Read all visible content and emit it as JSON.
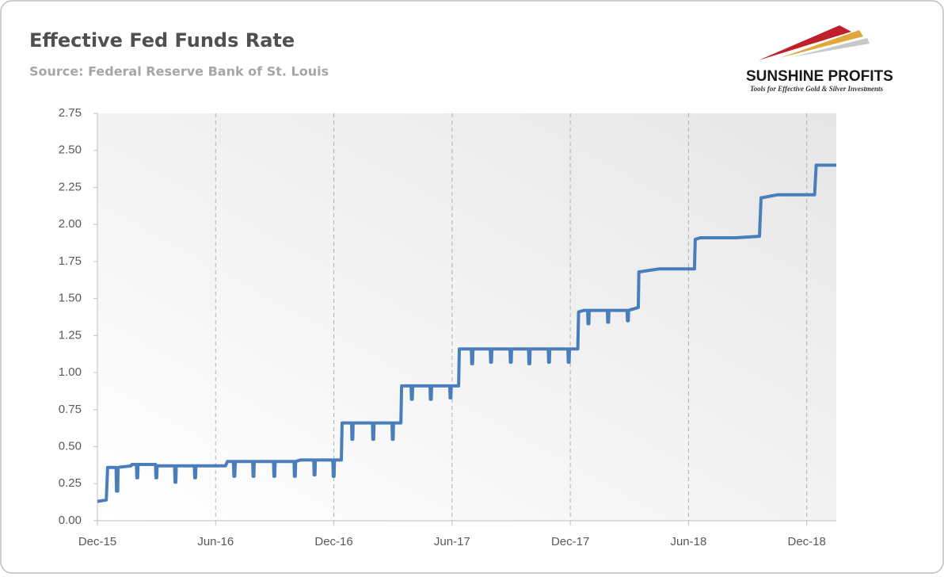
{
  "chart_data": {
    "type": "line",
    "title": "Effective Fed Funds Rate",
    "subtitle": "Source: Federal Reserve Bank of St. Louis",
    "brand": "SUNSHINE PROFITS",
    "tagline": "Tools for Effective Gold & Silver Investments",
    "color": "#4a7ebb",
    "grid": true,
    "xlim": [
      0,
      37.5
    ],
    "ylim": [
      0,
      2.75
    ],
    "xticks": [
      {
        "value": 0,
        "label": "Dec-15"
      },
      {
        "value": 6,
        "label": "Jun-16"
      },
      {
        "value": 12,
        "label": "Dec-16"
      },
      {
        "value": 18,
        "label": "Jun-17"
      },
      {
        "value": 24,
        "label": "Dec-17"
      },
      {
        "value": 30,
        "label": "Jun-18"
      },
      {
        "value": 36,
        "label": "Dec-18"
      }
    ],
    "yticks": [
      {
        "value": 0,
        "label": "0.00"
      },
      {
        "value": 0.25,
        "label": "0.25"
      },
      {
        "value": 0.5,
        "label": "0.50"
      },
      {
        "value": 0.75,
        "label": "0.75"
      },
      {
        "value": 1,
        "label": "1.00"
      },
      {
        "value": 1.25,
        "label": "1.25"
      },
      {
        "value": 1.5,
        "label": "1.50"
      },
      {
        "value": 1.75,
        "label": "1.75"
      },
      {
        "value": 2,
        "label": "2.00"
      },
      {
        "value": 2.25,
        "label": "2.25"
      },
      {
        "value": 2.5,
        "label": "2.50"
      },
      {
        "value": 2.75,
        "label": "2.75"
      }
    ],
    "x": [
      0,
      0.45,
      0.52,
      0.95,
      0.97,
      1.03,
      1.05,
      1.7,
      1.75,
      1.98,
      2.0,
      2.04,
      2.06,
      2.95,
      2.97,
      3.01,
      3.03,
      3.92,
      3.94,
      3.98,
      4.0,
      4.92,
      4.94,
      4.98,
      5.0,
      6.5,
      6.6,
      6.9,
      6.93,
      6.97,
      7.0,
      7.88,
      7.9,
      7.94,
      7.96,
      8.94,
      8.96,
      9.0,
      9.02,
      9.98,
      10.0,
      10.04,
      10.06,
      10.3,
      10.98,
      11.0,
      11.04,
      11.06,
      11.95,
      11.97,
      12.01,
      12.03,
      12.38,
      12.42,
      12.9,
      12.92,
      12.96,
      12.98,
      13.96,
      13.98,
      14.02,
      14.04,
      14.95,
      14.97,
      15.01,
      15.03,
      15.4,
      15.44,
      15.92,
      15.94,
      15.98,
      16.0,
      16.88,
      16.9,
      16.94,
      16.96,
      17.88,
      17.9,
      17.94,
      17.96,
      18.33,
      18.37,
      18.98,
      19.0,
      19.04,
      19.06,
      19.94,
      19.96,
      20.0,
      20.02,
      20.94,
      20.96,
      21.0,
      21.02,
      21.88,
      21.9,
      21.94,
      21.96,
      22.88,
      22.9,
      22.94,
      22.96,
      23.88,
      23.9,
      23.94,
      23.96,
      24.38,
      24.42,
      24.7,
      24.88,
      24.9,
      24.94,
      24.96,
      25.88,
      25.9,
      25.94,
      25.96,
      26.88,
      26.9,
      26.94,
      26.96,
      27.45,
      27.48,
      27.52,
      28.0,
      28.5,
      30.3,
      30.34,
      30.6,
      32.4,
      33.6,
      33.68,
      33.72,
      34.5,
      35.0,
      36.4,
      36.48,
      36.52,
      37.5
    ],
    "values": [
      0.13,
      0.14,
      0.36,
      0.36,
      0.2,
      0.2,
      0.36,
      0.37,
      0.38,
      0.38,
      0.29,
      0.29,
      0.38,
      0.38,
      0.29,
      0.29,
      0.37,
      0.37,
      0.26,
      0.26,
      0.37,
      0.37,
      0.29,
      0.29,
      0.37,
      0.37,
      0.4,
      0.4,
      0.3,
      0.3,
      0.4,
      0.4,
      0.3,
      0.3,
      0.4,
      0.4,
      0.3,
      0.3,
      0.4,
      0.4,
      0.3,
      0.3,
      0.4,
      0.41,
      0.41,
      0.31,
      0.31,
      0.41,
      0.41,
      0.3,
      0.3,
      0.41,
      0.41,
      0.66,
      0.66,
      0.55,
      0.55,
      0.66,
      0.66,
      0.55,
      0.55,
      0.66,
      0.66,
      0.55,
      0.55,
      0.66,
      0.66,
      0.91,
      0.91,
      0.82,
      0.82,
      0.91,
      0.91,
      0.82,
      0.82,
      0.91,
      0.91,
      0.83,
      0.83,
      0.91,
      0.91,
      1.16,
      1.16,
      1.06,
      1.06,
      1.16,
      1.16,
      1.07,
      1.07,
      1.16,
      1.16,
      1.07,
      1.07,
      1.16,
      1.16,
      1.06,
      1.06,
      1.16,
      1.16,
      1.07,
      1.07,
      1.16,
      1.16,
      1.07,
      1.07,
      1.16,
      1.16,
      1.41,
      1.42,
      1.42,
      1.33,
      1.33,
      1.42,
      1.42,
      1.34,
      1.34,
      1.42,
      1.42,
      1.35,
      1.35,
      1.42,
      1.44,
      1.68,
      1.68,
      1.69,
      1.7,
      1.7,
      1.9,
      1.91,
      1.91,
      1.92,
      2.18,
      2.18,
      2.2,
      2.2,
      2.2,
      2.4,
      2.4,
      2.4
    ]
  }
}
